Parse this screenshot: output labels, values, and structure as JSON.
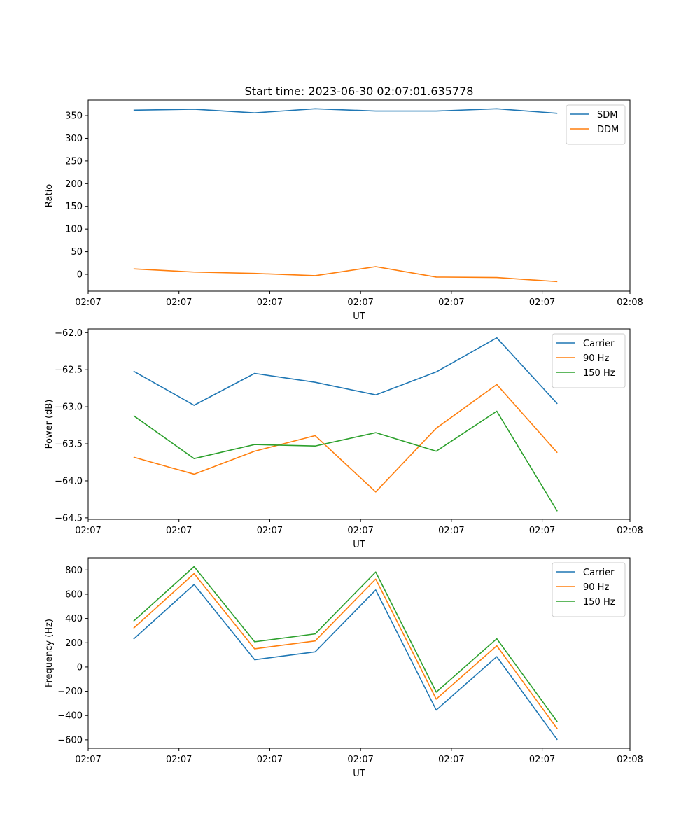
{
  "chart_data": [
    {
      "type": "line",
      "title": "Start time: 2023-06-30 02:07:01.635778",
      "xlabel": "UT",
      "ylabel": "Ratio",
      "x": [
        1,
        2,
        3,
        4,
        5,
        6,
        7,
        8
      ],
      "xlim": [
        0.25,
        9.2
      ],
      "x_ticks": [
        0.25,
        1.75,
        3.25,
        4.75,
        6.25,
        7.75,
        9.2
      ],
      "x_tick_labels": [
        "02:07",
        "02:07",
        "02:07",
        "02:07",
        "02:07",
        "02:07",
        "02:08"
      ],
      "ylim": [
        -37,
        384
      ],
      "y_ticks": [
        0,
        50,
        100,
        150,
        200,
        250,
        300,
        350
      ],
      "y_tick_labels": [
        "0",
        "50",
        "100",
        "150",
        "200",
        "250",
        "300",
        "350"
      ],
      "legend": "top-right",
      "series": [
        {
          "name": "SDM",
          "color": "#1f77b4",
          "values": [
            362,
            364,
            356,
            365,
            360,
            360,
            365,
            355
          ]
        },
        {
          "name": "DDM",
          "color": "#ff7f0e",
          "values": [
            12,
            5,
            2,
            -3,
            17,
            -6,
            -7,
            -16
          ]
        }
      ]
    },
    {
      "type": "line",
      "title": "",
      "xlabel": "UT",
      "ylabel": "Power (dB)",
      "x": [
        1,
        2,
        3,
        4,
        5,
        6,
        7,
        8
      ],
      "xlim": [
        0.25,
        9.2
      ],
      "x_ticks": [
        0.25,
        1.75,
        3.25,
        4.75,
        6.25,
        7.75,
        9.2
      ],
      "x_tick_labels": [
        "02:07",
        "02:07",
        "02:07",
        "02:07",
        "02:07",
        "02:07",
        "02:08"
      ],
      "ylim": [
        -64.52,
        -61.95
      ],
      "y_ticks": [
        -64.5,
        -64.0,
        -63.5,
        -63.0,
        -62.5,
        -62.0
      ],
      "y_tick_labels": [
        "−64.5",
        "−64.0",
        "−63.5",
        "−63.0",
        "−62.5",
        "−62.0"
      ],
      "legend": "top-right",
      "series": [
        {
          "name": "Carrier",
          "color": "#1f77b4",
          "values": [
            -62.52,
            -62.98,
            -62.55,
            -62.67,
            -62.84,
            -62.53,
            -62.07,
            -62.96
          ]
        },
        {
          "name": "90 Hz",
          "color": "#ff7f0e",
          "values": [
            -63.68,
            -63.91,
            -63.6,
            -63.39,
            -64.15,
            -63.29,
            -62.7,
            -63.62
          ]
        },
        {
          "name": "150 Hz",
          "color": "#2ca02c",
          "values": [
            -63.12,
            -63.7,
            -63.51,
            -63.53,
            -63.35,
            -63.6,
            -63.06,
            -64.41
          ]
        }
      ]
    },
    {
      "type": "line",
      "title": "",
      "xlabel": "UT",
      "ylabel": "Frequency (Hz)",
      "x": [
        1,
        2,
        3,
        4,
        5,
        6,
        7,
        8
      ],
      "xlim": [
        0.25,
        9.2
      ],
      "x_ticks": [
        0.25,
        1.75,
        3.25,
        4.75,
        6.25,
        7.75,
        9.2
      ],
      "x_tick_labels": [
        "02:07",
        "02:07",
        "02:07",
        "02:07",
        "02:07",
        "02:07",
        "02:08"
      ],
      "ylim": [
        -670,
        900
      ],
      "y_ticks": [
        -600,
        -400,
        -200,
        0,
        200,
        400,
        600,
        800
      ],
      "y_tick_labels": [
        "−600",
        "−400",
        "−200",
        "0",
        "200",
        "400",
        "600",
        "800"
      ],
      "legend": "top-right",
      "series": [
        {
          "name": "Carrier",
          "color": "#1f77b4",
          "values": [
            230,
            680,
            60,
            125,
            635,
            -355,
            85,
            -600
          ]
        },
        {
          "name": "90 Hz",
          "color": "#ff7f0e",
          "values": [
            320,
            770,
            150,
            215,
            725,
            -265,
            175,
            -510
          ]
        },
        {
          "name": "150 Hz",
          "color": "#2ca02c",
          "values": [
            378,
            828,
            208,
            273,
            783,
            -207,
            233,
            -452
          ]
        }
      ]
    }
  ]
}
